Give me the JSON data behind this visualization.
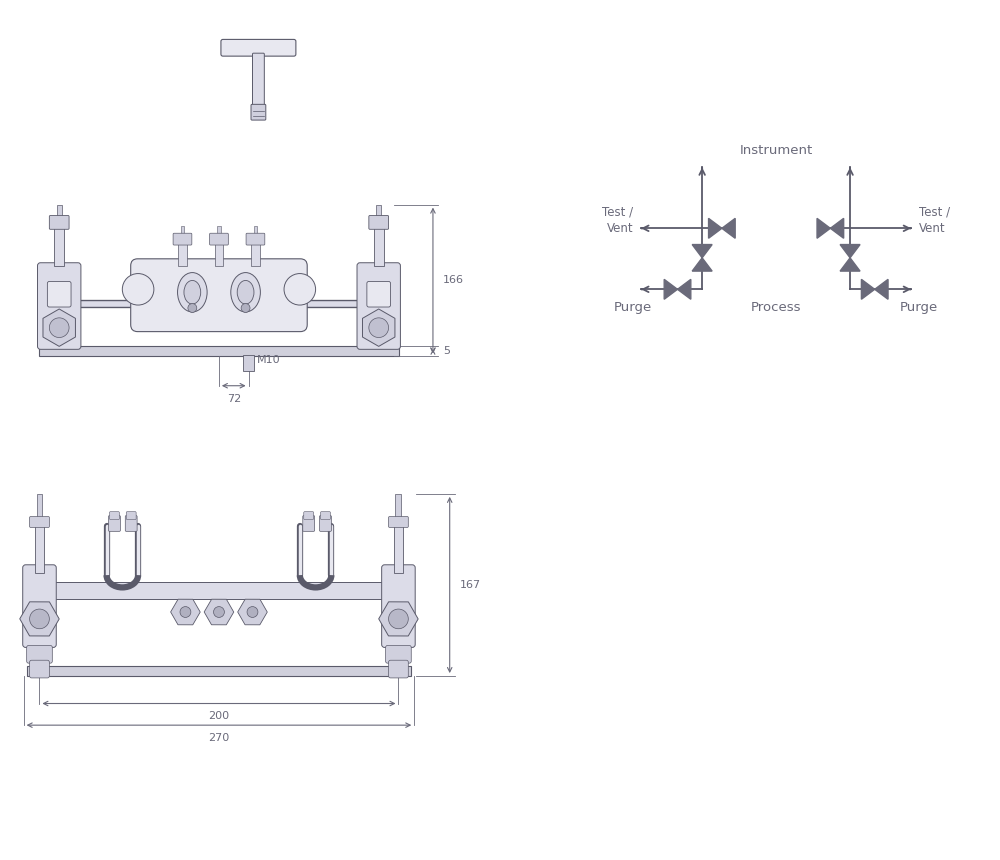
{
  "bg_color": "#ffffff",
  "line_color": "#5a5a6a",
  "dim_color": "#6a6a7a",
  "valve_color": "#6a6a7a",
  "text_color": "#6a6a7a",
  "body_fill": "#dcdce8",
  "body_fill2": "#e8e8f0",
  "body_fill3": "#d0d0de",
  "plate_fill": "#d0d0dc",
  "dims_top": {
    "height_label": "166",
    "m10_label": "M10",
    "dim72_label": "72",
    "dim5_label": "5"
  },
  "dims_bottom": {
    "height_label": "167",
    "dim200_label": "200",
    "dim270_label": "270"
  },
  "diagram": {
    "instrument_label": "Instrument",
    "test_vent_label": "Test /\nVent",
    "purge_label": "Purge",
    "process_label": "Process"
  }
}
